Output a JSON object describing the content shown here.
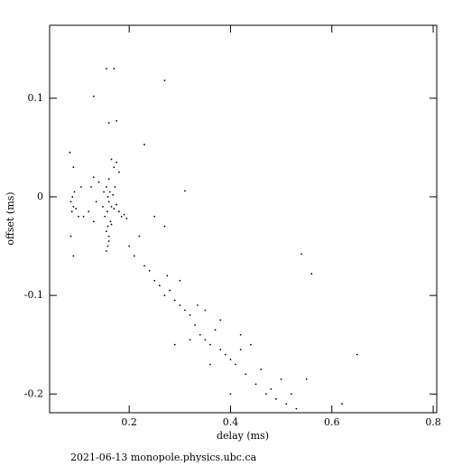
{
  "chart_data": {
    "type": "scatter",
    "color": "#000000",
    "x_label": "delay (ms)",
    "y_label": "offset (ms)",
    "footer": "2021-06-13 monopole.physics.ubc.ca",
    "xlim": [
      0.043,
      0.807
    ],
    "ylim": [
      -0.219,
      0.174
    ],
    "xticks": [
      0.2,
      0.4,
      0.6,
      0.8
    ],
    "yticks": [
      0.1,
      0,
      -0.1,
      -0.2
    ],
    "x": [
      0.155,
      0.158,
      0.16,
      0.162,
      0.165,
      0.157,
      0.17,
      0.168,
      0.152,
      0.16,
      0.175,
      0.18,
      0.163,
      0.158,
      0.155,
      0.16,
      0.165,
      0.185,
      0.19,
      0.195,
      0.15,
      0.148,
      0.172,
      0.17,
      0.175,
      0.165,
      0.18,
      0.14,
      0.135,
      0.13,
      0.125,
      0.12,
      0.11,
      0.13,
      0.158,
      0.155,
      0.16,
      0.085,
      0.088,
      0.09,
      0.092,
      0.087,
      0.095,
      0.083,
      0.09,
      0.085,
      0.09,
      0.1,
      0.105,
      0.17,
      0.155,
      0.27,
      0.13,
      0.16,
      0.175,
      0.23,
      0.31,
      0.54,
      0.56,
      0.65,
      0.55,
      0.62,
      0.2,
      0.21,
      0.22,
      0.23,
      0.24,
      0.25,
      0.26,
      0.27,
      0.275,
      0.28,
      0.29,
      0.3,
      0.31,
      0.32,
      0.33,
      0.335,
      0.34,
      0.35,
      0.36,
      0.37,
      0.38,
      0.39,
      0.4,
      0.41,
      0.42,
      0.43,
      0.44,
      0.45,
      0.46,
      0.47,
      0.48,
      0.49,
      0.5,
      0.51,
      0.52,
      0.53,
      0.29,
      0.32,
      0.36,
      0.4,
      0.27,
      0.25,
      0.3,
      0.35,
      0.38,
      0.42
    ],
    "y": [
      0.01,
      0.0,
      -0.005,
      0.005,
      -0.01,
      -0.015,
      -0.012,
      0.002,
      -0.02,
      0.018,
      -0.008,
      -0.015,
      -0.025,
      -0.03,
      -0.035,
      -0.04,
      -0.028,
      -0.02,
      -0.018,
      -0.022,
      0.005,
      -0.01,
      0.01,
      0.03,
      0.035,
      0.038,
      0.025,
      0.015,
      -0.005,
      0.02,
      0.01,
      -0.015,
      -0.02,
      -0.025,
      -0.05,
      -0.055,
      -0.045,
      -0.005,
      0.0,
      -0.01,
      0.005,
      -0.015,
      -0.012,
      0.045,
      0.03,
      -0.04,
      -0.06,
      -0.02,
      0.01,
      0.13,
      0.13,
      0.118,
      0.102,
      0.075,
      0.077,
      0.053,
      0.006,
      -0.058,
      -0.078,
      -0.16,
      -0.185,
      -0.21,
      -0.05,
      -0.06,
      -0.04,
      -0.07,
      -0.075,
      -0.085,
      -0.09,
      -0.1,
      -0.08,
      -0.095,
      -0.105,
      -0.11,
      -0.115,
      -0.12,
      -0.13,
      -0.11,
      -0.14,
      -0.145,
      -0.15,
      -0.135,
      -0.155,
      -0.16,
      -0.165,
      -0.17,
      -0.14,
      -0.18,
      -0.15,
      -0.19,
      -0.175,
      -0.2,
      -0.195,
      -0.205,
      -0.185,
      -0.21,
      -0.2,
      -0.215,
      -0.15,
      -0.145,
      -0.17,
      -0.2,
      -0.03,
      -0.02,
      -0.085,
      -0.115,
      -0.125,
      -0.155
    ]
  }
}
